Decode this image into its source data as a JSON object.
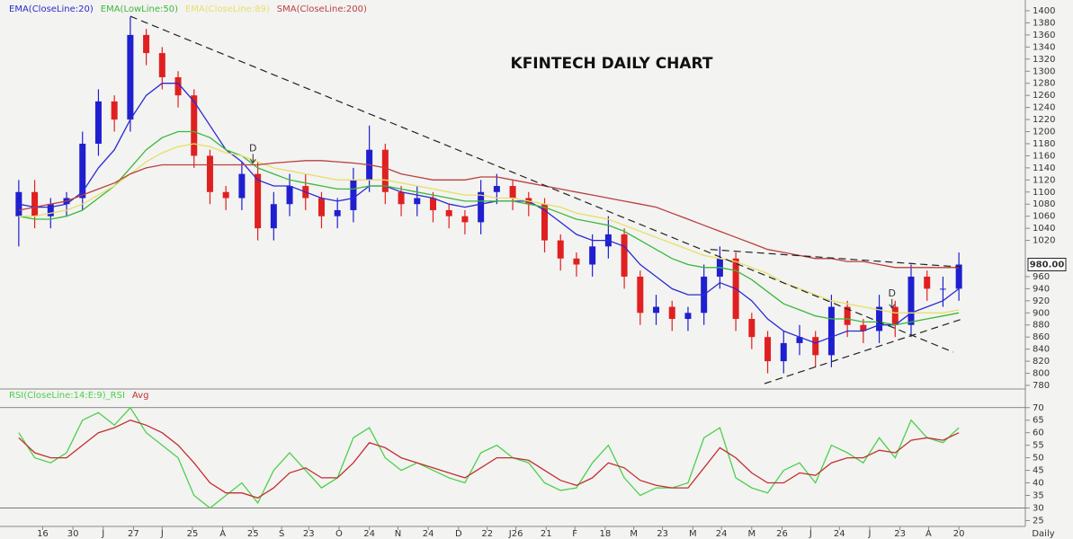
{
  "chart_data": [
    {
      "type": "candlestick",
      "title": "KFINTECH DAILY CHART",
      "x": [
        0,
        1,
        2,
        3,
        4,
        5,
        6,
        7,
        8,
        9,
        10,
        11,
        12,
        13,
        14,
        15,
        16,
        17,
        18,
        19,
        20,
        21,
        22,
        23,
        24,
        25,
        26,
        27,
        28,
        29,
        30,
        31,
        32,
        33,
        34,
        35,
        36,
        37,
        38,
        39,
        40,
        41,
        42,
        43,
        44,
        45,
        46,
        47,
        48,
        49,
        50,
        51,
        52,
        53,
        54,
        55,
        56,
        57,
        58,
        59
      ],
      "xlim": [
        -0.5,
        59.5
      ],
      "open": [
        1060,
        1100,
        1060,
        1080,
        1090,
        1180,
        1250,
        1220,
        1360,
        1330,
        1290,
        1260,
        1160,
        1100,
        1090,
        1130,
        1040,
        1080,
        1110,
        1090,
        1060,
        1070,
        1120,
        1170,
        1100,
        1080,
        1090,
        1070,
        1060,
        1050,
        1100,
        1110,
        1090,
        1080,
        1020,
        990,
        980,
        1010,
        1030,
        960,
        900,
        910,
        890,
        900,
        960,
        990,
        890,
        860,
        820,
        850,
        860,
        830,
        910,
        880,
        870,
        910,
        880,
        960,
        940,
        940
      ],
      "high": [
        1120,
        1120,
        1090,
        1100,
        1200,
        1270,
        1260,
        1390,
        1370,
        1340,
        1300,
        1270,
        1170,
        1110,
        1150,
        1150,
        1100,
        1130,
        1130,
        1100,
        1090,
        1140,
        1210,
        1180,
        1110,
        1110,
        1100,
        1080,
        1070,
        1120,
        1130,
        1120,
        1100,
        1090,
        1030,
        1000,
        1030,
        1060,
        1040,
        970,
        930,
        920,
        910,
        980,
        1010,
        1000,
        900,
        870,
        870,
        880,
        870,
        930,
        920,
        890,
        930,
        920,
        980,
        970,
        960,
        1000
      ],
      "low": [
        1010,
        1040,
        1040,
        1060,
        1070,
        1160,
        1200,
        1200,
        1310,
        1270,
        1240,
        1140,
        1080,
        1070,
        1070,
        1020,
        1020,
        1060,
        1070,
        1040,
        1040,
        1050,
        1100,
        1080,
        1060,
        1060,
        1050,
        1040,
        1030,
        1030,
        1080,
        1070,
        1060,
        1000,
        970,
        960,
        960,
        990,
        940,
        880,
        880,
        870,
        870,
        880,
        940,
        870,
        840,
        800,
        800,
        830,
        810,
        810,
        860,
        850,
        850,
        860,
        860,
        920,
        910,
        920
      ],
      "close": [
        1100,
        1060,
        1080,
        1090,
        1180,
        1250,
        1220,
        1360,
        1330,
        1290,
        1260,
        1160,
        1100,
        1090,
        1130,
        1040,
        1080,
        1110,
        1090,
        1060,
        1070,
        1120,
        1170,
        1100,
        1080,
        1090,
        1070,
        1060,
        1050,
        1100,
        1110,
        1090,
        1080,
        1020,
        990,
        980,
        1010,
        1030,
        960,
        900,
        910,
        890,
        900,
        960,
        990,
        890,
        860,
        820,
        850,
        860,
        830,
        910,
        880,
        870,
        910,
        880,
        960,
        940,
        940,
        980
      ],
      "up_color": "#1f1fd0",
      "down_color": "#e02020",
      "series": [
        {
          "name": "EMA(CloseLine:20)",
          "color": "#2a2ad0",
          "values": [
            1080,
            1075,
            1075,
            1080,
            1100,
            1140,
            1170,
            1220,
            1260,
            1280,
            1280,
            1250,
            1210,
            1170,
            1150,
            1120,
            1110,
            1110,
            1100,
            1090,
            1085,
            1090,
            1110,
            1110,
            1100,
            1095,
            1090,
            1080,
            1075,
            1080,
            1085,
            1085,
            1085,
            1070,
            1050,
            1030,
            1020,
            1020,
            1010,
            980,
            960,
            940,
            930,
            930,
            950,
            940,
            920,
            890,
            870,
            860,
            850,
            860,
            870,
            870,
            880,
            880,
            900,
            910,
            920,
            940
          ]
        },
        {
          "name": "EMA(LowLine:50)",
          "color": "#3cb83c",
          "values": [
            1060,
            1055,
            1055,
            1060,
            1070,
            1090,
            1110,
            1140,
            1170,
            1190,
            1200,
            1200,
            1190,
            1170,
            1160,
            1140,
            1130,
            1120,
            1115,
            1110,
            1105,
            1105,
            1110,
            1110,
            1105,
            1100,
            1095,
            1090,
            1085,
            1085,
            1085,
            1085,
            1080,
            1075,
            1065,
            1055,
            1050,
            1045,
            1035,
            1020,
            1005,
            990,
            980,
            975,
            975,
            970,
            955,
            935,
            915,
            905,
            895,
            890,
            890,
            885,
            885,
            880,
            885,
            890,
            895,
            900
          ]
        },
        {
          "name": "EMA(CloseLine:89)",
          "color": "#e6df6a",
          "values": [
            1060,
            1060,
            1065,
            1070,
            1080,
            1095,
            1110,
            1130,
            1150,
            1165,
            1175,
            1180,
            1175,
            1165,
            1160,
            1150,
            1140,
            1135,
            1130,
            1125,
            1120,
            1120,
            1120,
            1120,
            1115,
            1110,
            1105,
            1100,
            1095,
            1095,
            1090,
            1090,
            1085,
            1080,
            1075,
            1065,
            1060,
            1055,
            1045,
            1035,
            1025,
            1015,
            1005,
            995,
            990,
            985,
            975,
            965,
            950,
            940,
            930,
            920,
            915,
            910,
            905,
            900,
            900,
            900,
            900,
            905
          ]
        },
        {
          "name": "SMA(CloseLine:200)",
          "color": "#b84040",
          "values": [
            1070,
            1075,
            1080,
            1085,
            1095,
            1105,
            1115,
            1130,
            1140,
            1145,
            1145,
            1145,
            1145,
            1145,
            1145,
            1145,
            1148,
            1150,
            1152,
            1152,
            1150,
            1148,
            1145,
            1140,
            1130,
            1125,
            1120,
            1120,
            1120,
            1125,
            1125,
            1120,
            1115,
            1110,
            1105,
            1100,
            1095,
            1090,
            1085,
            1080,
            1075,
            1065,
            1055,
            1045,
            1035,
            1025,
            1015,
            1005,
            1000,
            995,
            990,
            990,
            985,
            985,
            980,
            975,
            975,
            975,
            975,
            975
          ]
        }
      ],
      "ylim": [
        780,
        1400
      ],
      "yticks": [
        780,
        800,
        820,
        840,
        860,
        880,
        900,
        920,
        940,
        960,
        1020,
        1040,
        1060,
        1080,
        1100,
        1120,
        1140,
        1160,
        1180,
        1200,
        1220,
        1240,
        1260,
        1280,
        1300,
        1320,
        1340,
        1360,
        1380,
        1400
      ],
      "last_price": {
        "value": 980,
        "label": "980.00"
      },
      "trendlines": [
        {
          "x": [
            7,
            58.65
          ],
          "y": [
            1391,
            835
          ]
        },
        {
          "x": [
            43.4,
            59.1
          ],
          "y": [
            1005,
            976
          ]
        },
        {
          "x": [
            46.8,
            59.1
          ],
          "y": [
            783,
            889
          ]
        }
      ],
      "annotations": [
        {
          "text": "D",
          "x": 14.7,
          "y": 1172
        },
        {
          "text": "D",
          "x": 54.8,
          "y": 932
        }
      ]
    },
    {
      "type": "line",
      "x": [
        0,
        1,
        2,
        3,
        4,
        5,
        6,
        7,
        8,
        9,
        10,
        11,
        12,
        13,
        14,
        15,
        16,
        17,
        18,
        19,
        20,
        21,
        22,
        23,
        24,
        25,
        26,
        27,
        28,
        29,
        30,
        31,
        32,
        33,
        34,
        35,
        36,
        37,
        38,
        39,
        40,
        41,
        42,
        43,
        44,
        45,
        46,
        47,
        48,
        49,
        50,
        51,
        52,
        53,
        54,
        55,
        56,
        57,
        58,
        59
      ],
      "xlim": [
        -0.5,
        59.5
      ],
      "series": [
        {
          "name": "RSI(CloseLine:14:E:9)_RSI",
          "color": "#4cd04c",
          "values": [
            60,
            50,
            48,
            52,
            65,
            68,
            63,
            70,
            60,
            55,
            50,
            35,
            30,
            35,
            40,
            32,
            45,
            52,
            45,
            38,
            42,
            58,
            62,
            50,
            45,
            48,
            45,
            42,
            40,
            52,
            55,
            50,
            48,
            40,
            37,
            38,
            48,
            55,
            42,
            35,
            38,
            38,
            40,
            58,
            62,
            42,
            38,
            36,
            45,
            48,
            40,
            55,
            52,
            48,
            58,
            50,
            65,
            58,
            56,
            62
          ]
        },
        {
          "name": "Avg",
          "color": "#c03030",
          "values": [
            58,
            52,
            50,
            50,
            55,
            60,
            62,
            65,
            63,
            60,
            55,
            48,
            40,
            36,
            36,
            34,
            38,
            44,
            46,
            42,
            42,
            48,
            56,
            54,
            50,
            48,
            46,
            44,
            42,
            46,
            50,
            50,
            49,
            45,
            41,
            39,
            42,
            48,
            46,
            41,
            39,
            38,
            38,
            46,
            54,
            50,
            44,
            40,
            40,
            44,
            43,
            48,
            50,
            50,
            53,
            52,
            57,
            58,
            57,
            60
          ]
        }
      ],
      "ylim": [
        23,
        76
      ],
      "yticks": [
        25,
        30,
        35,
        40,
        45,
        50,
        55,
        60,
        65,
        70
      ],
      "ref_lines": [
        70,
        30
      ],
      "xticks": [
        {
          "value": 1.5,
          "label": "16"
        },
        {
          "value": 3.4,
          "label": "30"
        },
        {
          "value": 5.3,
          "label": "J"
        },
        {
          "value": 7.2,
          "label": "27"
        },
        {
          "value": 9.0,
          "label": "J"
        },
        {
          "value": 10.9,
          "label": "25"
        },
        {
          "value": 12.8,
          "label": "A"
        },
        {
          "value": 14.7,
          "label": "25"
        },
        {
          "value": 16.5,
          "label": "S"
        },
        {
          "value": 18.2,
          "label": "23"
        },
        {
          "value": 20.1,
          "label": "O"
        },
        {
          "value": 22.0,
          "label": "24"
        },
        {
          "value": 23.8,
          "label": "N"
        },
        {
          "value": 25.7,
          "label": "24"
        },
        {
          "value": 27.6,
          "label": "D"
        },
        {
          "value": 29.4,
          "label": "22"
        },
        {
          "value": 31.2,
          "label": "J26"
        },
        {
          "value": 33.1,
          "label": "21"
        },
        {
          "value": 34.9,
          "label": "F"
        },
        {
          "value": 36.8,
          "label": "18"
        },
        {
          "value": 38.6,
          "label": "M"
        },
        {
          "value": 40.4,
          "label": "23"
        },
        {
          "value": 42.3,
          "label": "M"
        },
        {
          "value": 44.1,
          "label": "24"
        },
        {
          "value": 46.0,
          "label": "M"
        },
        {
          "value": 47.9,
          "label": "26"
        },
        {
          "value": 49.7,
          "label": "J"
        },
        {
          "value": 51.5,
          "label": "24"
        },
        {
          "value": 53.4,
          "label": "J"
        },
        {
          "value": 55.3,
          "label": "23"
        },
        {
          "value": 57.1,
          "label": "A"
        },
        {
          "value": 59.0,
          "label": "20"
        }
      ],
      "period_label": "Daily"
    }
  ]
}
